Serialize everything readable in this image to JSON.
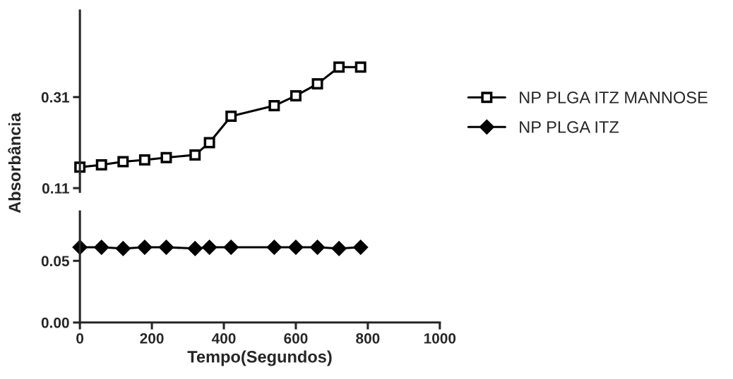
{
  "chart_data": [
    {
      "type": "line",
      "ylabel": "Absorbância",
      "ylim": [
        0.102,
        0.5
      ],
      "yticks": [
        0.11,
        0.31
      ],
      "xlim": [
        0,
        1000
      ],
      "tick_labels": "y",
      "legend": "right",
      "marker": "square",
      "series": [
        {
          "name": "NP PLGA ITZ MANNOSE",
          "color": "#000000",
          "x": [
            0,
            60,
            120,
            180,
            240,
            320,
            360,
            420,
            540,
            600,
            660,
            720,
            780
          ],
          "values": [
            0.156,
            0.161,
            0.168,
            0.172,
            0.177,
            0.183,
            0.21,
            0.268,
            0.291,
            0.313,
            0.339,
            0.376,
            0.376
          ]
        }
      ]
    },
    {
      "type": "line",
      "xlabel": "Tempo(Segundos)",
      "ylim": [
        0,
        0.09
      ],
      "yticks": [
        {
          "value": 0,
          "label": "0.00"
        },
        0.05
      ],
      "xlim": [
        0,
        1000
      ],
      "xticks": [
        0,
        200,
        400,
        600,
        800,
        1000
      ],
      "legend": "right",
      "marker": "diamond",
      "series": [
        {
          "name": "NP PLGA ITZ",
          "color": "#000000",
          "x": [
            0,
            60,
            120,
            180,
            240,
            320,
            360,
            420,
            540,
            600,
            660,
            720,
            780
          ],
          "values": [
            0.061,
            0.061,
            0.06,
            0.061,
            0.061,
            0.06,
            0.061,
            0.061,
            0.061,
            0.061,
            0.061,
            0.06,
            0.061
          ]
        }
      ]
    }
  ]
}
